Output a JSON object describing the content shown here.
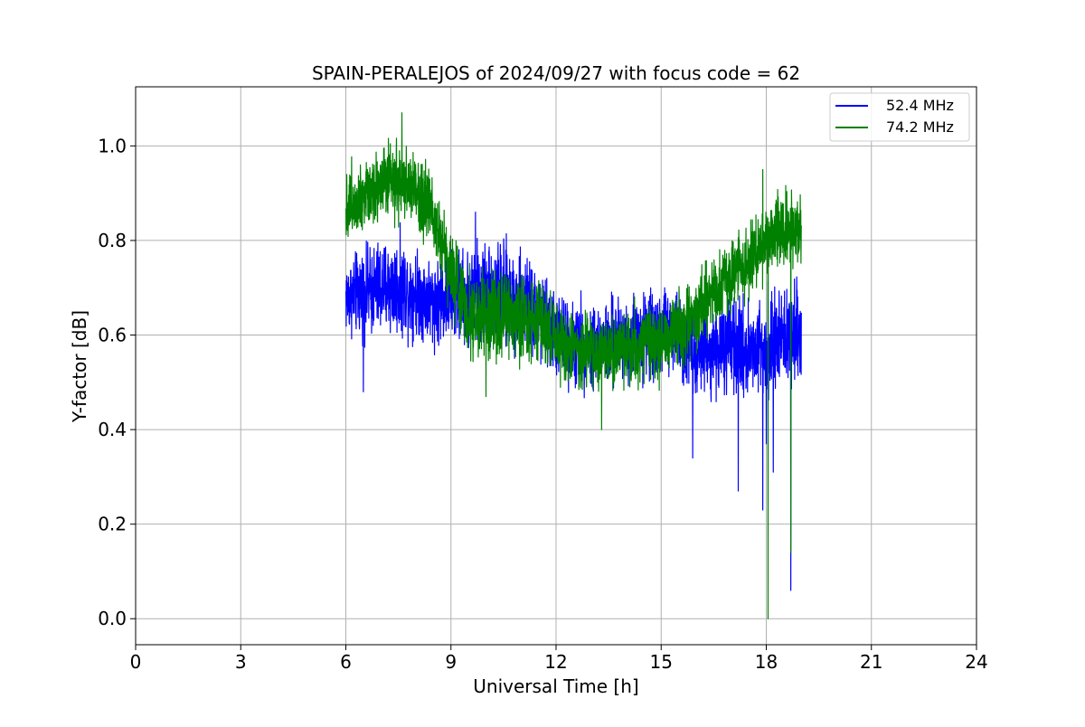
{
  "chart_data": {
    "type": "line",
    "title": "SPAIN-PERALEJOS of 2024/09/27 with focus code = 62",
    "xlabel": "Universal Time [h]",
    "ylabel": "Y-factor [dB]",
    "xlim": [
      0,
      24
    ],
    "ylim": [
      -0.055,
      1.125
    ],
    "xticks": [
      0,
      3,
      6,
      9,
      12,
      15,
      18,
      21,
      24
    ],
    "xtick_labels": [
      "0",
      "3",
      "6",
      "9",
      "12",
      "15",
      "18",
      "21",
      "24"
    ],
    "yticks": [
      0.0,
      0.2,
      0.4,
      0.6,
      0.8,
      1.0
    ],
    "ytick_labels": [
      "0.0",
      "0.2",
      "0.4",
      "0.6",
      "0.8",
      "1.0"
    ],
    "grid": true,
    "legend_position": "top-right",
    "series": [
      {
        "name": "52.4 MHz",
        "color": "#0000ff",
        "x": [
          6.0,
          6.5,
          7.0,
          7.5,
          8.0,
          8.5,
          9.0,
          9.5,
          10.0,
          10.5,
          11.0,
          11.5,
          12.0,
          12.5,
          13.0,
          13.5,
          14.0,
          14.5,
          15.0,
          15.5,
          16.0,
          16.5,
          17.0,
          17.5,
          18.0,
          18.5,
          19.0
        ],
        "y": [
          0.68,
          0.69,
          0.7,
          0.7,
          0.69,
          0.67,
          0.68,
          0.68,
          0.69,
          0.68,
          0.67,
          0.64,
          0.6,
          0.58,
          0.58,
          0.58,
          0.59,
          0.6,
          0.61,
          0.6,
          0.57,
          0.57,
          0.57,
          0.57,
          0.58,
          0.59,
          0.61
        ],
        "band": [
          0.07,
          0.08,
          0.09,
          0.09,
          0.08,
          0.08,
          0.08,
          0.09,
          0.1,
          0.1,
          0.09,
          0.09,
          0.08,
          0.08,
          0.08,
          0.08,
          0.08,
          0.08,
          0.08,
          0.08,
          0.08,
          0.08,
          0.09,
          0.09,
          0.09,
          0.09,
          0.09
        ],
        "spikes": [
          [
            6.5,
            0.48
          ],
          [
            9.7,
            0.86
          ],
          [
            15.9,
            0.34
          ],
          [
            17.2,
            0.27
          ],
          [
            17.9,
            0.23
          ],
          [
            18.0,
            0.37
          ],
          [
            18.2,
            0.31
          ],
          [
            18.7,
            0.06
          ]
        ]
      },
      {
        "name": "74.2 MHz",
        "color": "#008000",
        "x": [
          6.0,
          6.5,
          7.0,
          7.5,
          8.0,
          8.5,
          9.0,
          9.5,
          10.0,
          10.5,
          11.0,
          11.5,
          12.0,
          12.5,
          13.0,
          13.5,
          14.0,
          14.5,
          15.0,
          15.5,
          16.0,
          16.5,
          17.0,
          17.5,
          18.0,
          18.5,
          19.0
        ],
        "y": [
          0.87,
          0.9,
          0.92,
          0.92,
          0.91,
          0.86,
          0.74,
          0.65,
          0.63,
          0.64,
          0.64,
          0.63,
          0.59,
          0.57,
          0.56,
          0.56,
          0.57,
          0.58,
          0.59,
          0.61,
          0.64,
          0.69,
          0.73,
          0.76,
          0.8,
          0.82,
          0.82
        ],
        "band": [
          0.07,
          0.07,
          0.07,
          0.07,
          0.07,
          0.07,
          0.08,
          0.08,
          0.08,
          0.08,
          0.08,
          0.08,
          0.08,
          0.07,
          0.07,
          0.07,
          0.07,
          0.07,
          0.07,
          0.07,
          0.07,
          0.07,
          0.07,
          0.07,
          0.07,
          0.07,
          0.07
        ],
        "spikes": [
          [
            7.6,
            1.07
          ],
          [
            10.0,
            0.47
          ],
          [
            13.3,
            0.4
          ],
          [
            17.9,
            0.95
          ],
          [
            18.05,
            0.0
          ],
          [
            18.7,
            0.14
          ]
        ]
      }
    ]
  }
}
